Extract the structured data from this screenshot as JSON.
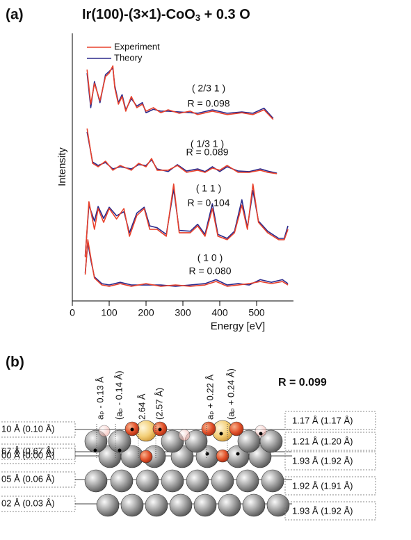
{
  "chart_data": {
    "type": "line",
    "panel_label": "(a)",
    "title": [
      "Ir(100)-(3×1)-CoO",
      "3",
      " + 0.3 O"
    ],
    "xlabel": "Energy [eV]",
    "ylabel": "Intensity",
    "xlim": [
      0,
      600
    ],
    "xticks": [
      0,
      100,
      200,
      300,
      400,
      500
    ],
    "ylim": [
      0,
      100
    ],
    "series": [
      {
        "name": "Experiment",
        "color": "#e8412b"
      },
      {
        "name": "Theory",
        "color": "#2b2a8c"
      }
    ],
    "beams": [
      {
        "label": "( 2/3 1 )",
        "r_label": "R = 0.098",
        "x": [
          40,
          50,
          60,
          75,
          90,
          100,
          110,
          115,
          125,
          135,
          145,
          160,
          175,
          190,
          200,
          220,
          240,
          260,
          290,
          320,
          340,
          380,
          420,
          460,
          490,
          520,
          545
        ],
        "experiment": [
          86.9,
          73.9,
          81.7,
          75.2,
          84.3,
          85.6,
          88.3,
          80.2,
          73.9,
          76.8,
          71.3,
          76.8,
          72.6,
          73.9,
          71.3,
          72.6,
          70.7,
          71.8,
          70.5,
          71.3,
          70.0,
          71.3,
          70.0,
          70.7,
          70.0,
          71.8,
          68.2
        ],
        "theory": [
          85.6,
          72.6,
          82.4,
          74.5,
          85.0,
          86.2,
          87.5,
          81.0,
          74.5,
          77.5,
          71.8,
          76.0,
          73.2,
          74.5,
          70.7,
          72.0,
          71.3,
          71.3,
          71.0,
          70.7,
          70.5,
          71.8,
          70.5,
          71.0,
          70.5,
          72.4,
          68.6
        ]
      },
      {
        "label": "( 1/3 1 )",
        "r_label": "R = 0.089",
        "x": [
          40,
          55,
          70,
          90,
          110,
          130,
          160,
          180,
          200,
          215,
          230,
          260,
          285,
          310,
          340,
          360,
          380,
          400,
          420,
          450,
          480,
          510,
          530,
          555
        ],
        "experiment": [
          64.8,
          51.7,
          50.4,
          52.5,
          49.1,
          50.9,
          49.1,
          51.7,
          50.4,
          53.5,
          49.1,
          49.1,
          50.9,
          48.3,
          49.1,
          48.3,
          49.9,
          49.1,
          50.9,
          48.3,
          48.3,
          49.1,
          48.3,
          47.8
        ],
        "theory": [
          63.5,
          52.2,
          50.9,
          52.0,
          49.6,
          50.4,
          49.6,
          51.2,
          50.9,
          53.0,
          49.6,
          48.6,
          51.2,
          48.8,
          49.6,
          48.6,
          50.4,
          48.6,
          50.4,
          48.8,
          48.6,
          49.6,
          48.8,
          48.0
        ]
      },
      {
        "label": "( 1 1 )",
        "r_label": "R = 0.104",
        "x": [
          35,
          45,
          60,
          70,
          85,
          100,
          120,
          140,
          155,
          175,
          195,
          210,
          230,
          255,
          275,
          290,
          320,
          340,
          360,
          380,
          395,
          420,
          440,
          460,
          475,
          490,
          505,
          530,
          560,
          575,
          585
        ],
        "experiment": [
          16.4,
          37.3,
          26.9,
          34.7,
          29.5,
          34.7,
          30.8,
          34.7,
          24.3,
          32.1,
          34.7,
          26.9,
          26.9,
          24.3,
          43.9,
          25.6,
          25.6,
          28.2,
          24.3,
          34.7,
          24.3,
          23.0,
          25.6,
          36.0,
          26.9,
          43.9,
          29.5,
          25.6,
          23.0,
          23.0,
          26.9
        ],
        "theory": [
          17.0,
          36.0,
          30.0,
          35.5,
          31.0,
          35.2,
          32.0,
          33.5,
          25.6,
          33.0,
          35.2,
          28.2,
          27.5,
          25.0,
          42.0,
          26.5,
          26.2,
          28.8,
          25.0,
          36.5,
          25.0,
          23.5,
          26.2,
          38.0,
          27.5,
          41.5,
          30.0,
          26.2,
          23.5,
          23.5,
          28.2
        ]
      },
      {
        "label": "( 1 0 )",
        "r_label": "R = 0.080",
        "x": [
          35,
          42,
          50,
          60,
          80,
          100,
          130,
          160,
          200,
          240,
          280,
          320,
          360,
          390,
          420,
          450,
          480,
          510,
          540,
          570,
          585
        ],
        "experiment": [
          9.9,
          23.0,
          16.4,
          8.6,
          6.0,
          5.5,
          6.5,
          5.5,
          6.5,
          5.5,
          6.0,
          5.5,
          6.0,
          7.3,
          5.5,
          6.0,
          6.5,
          7.3,
          6.5,
          7.3,
          6.0
        ],
        "theory": [
          10.5,
          22.0,
          15.5,
          9.0,
          6.5,
          6.0,
          7.0,
          6.0,
          6.0,
          6.0,
          5.5,
          6.0,
          6.5,
          8.0,
          6.0,
          6.5,
          6.0,
          8.0,
          7.0,
          8.0,
          6.5
        ]
      }
    ]
  },
  "structure": {
    "panel_label": "(b)",
    "r_value": "R = 0.099",
    "left_labels": [
      "10 Å (0.10 Å)",
      "67 Å (0.67 Å)",
      "00 Å (0.00 Å)",
      "05 Å (0.06 Å)",
      "02 Å (0.03 Å)"
    ],
    "right_labels": [
      "1.17 Å (1.17 Å)",
      "1.21 Å (1.20 Å)",
      "1.93 Å (1.92 Å)",
      "1.92 Å (1.91 Å)",
      "1.93 Å (1.92 Å)"
    ],
    "distance_labels": [
      "aₚ - 0.13 Å",
      "(aₚ - 0.14 Å)",
      "2.64 Å",
      "(2.57 Å)",
      "aₚ + 0.22 Å",
      "(aₚ + 0.24 Å)"
    ]
  }
}
